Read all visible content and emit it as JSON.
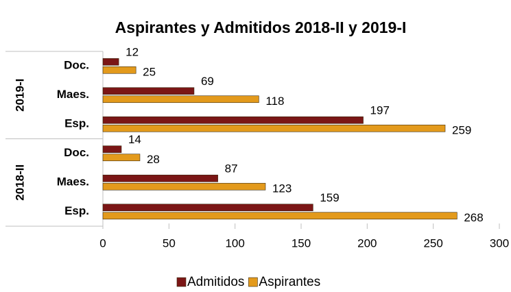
{
  "chart_data": {
    "type": "hbar",
    "title": "Aspirantes y Admitidos 2018-II y 2019-I",
    "groups": [
      {
        "name": "2019-I",
        "categories": [
          "Doc.",
          "Maes.",
          "Esp."
        ]
      },
      {
        "name": "2018-II",
        "categories": [
          "Doc.",
          "Maes.",
          "Esp."
        ]
      }
    ],
    "series": [
      {
        "name": "Admitidos",
        "color": "#7b1616",
        "values": [
          12,
          69,
          197,
          14,
          87,
          159
        ]
      },
      {
        "name": "Aspirantes",
        "color": "#e39a1c",
        "values": [
          25,
          118,
          259,
          28,
          123,
          268
        ]
      }
    ],
    "xlim": [
      0,
      300
    ],
    "xticks": [
      0,
      50,
      100,
      150,
      200,
      250,
      300
    ],
    "legend": "bottom"
  }
}
